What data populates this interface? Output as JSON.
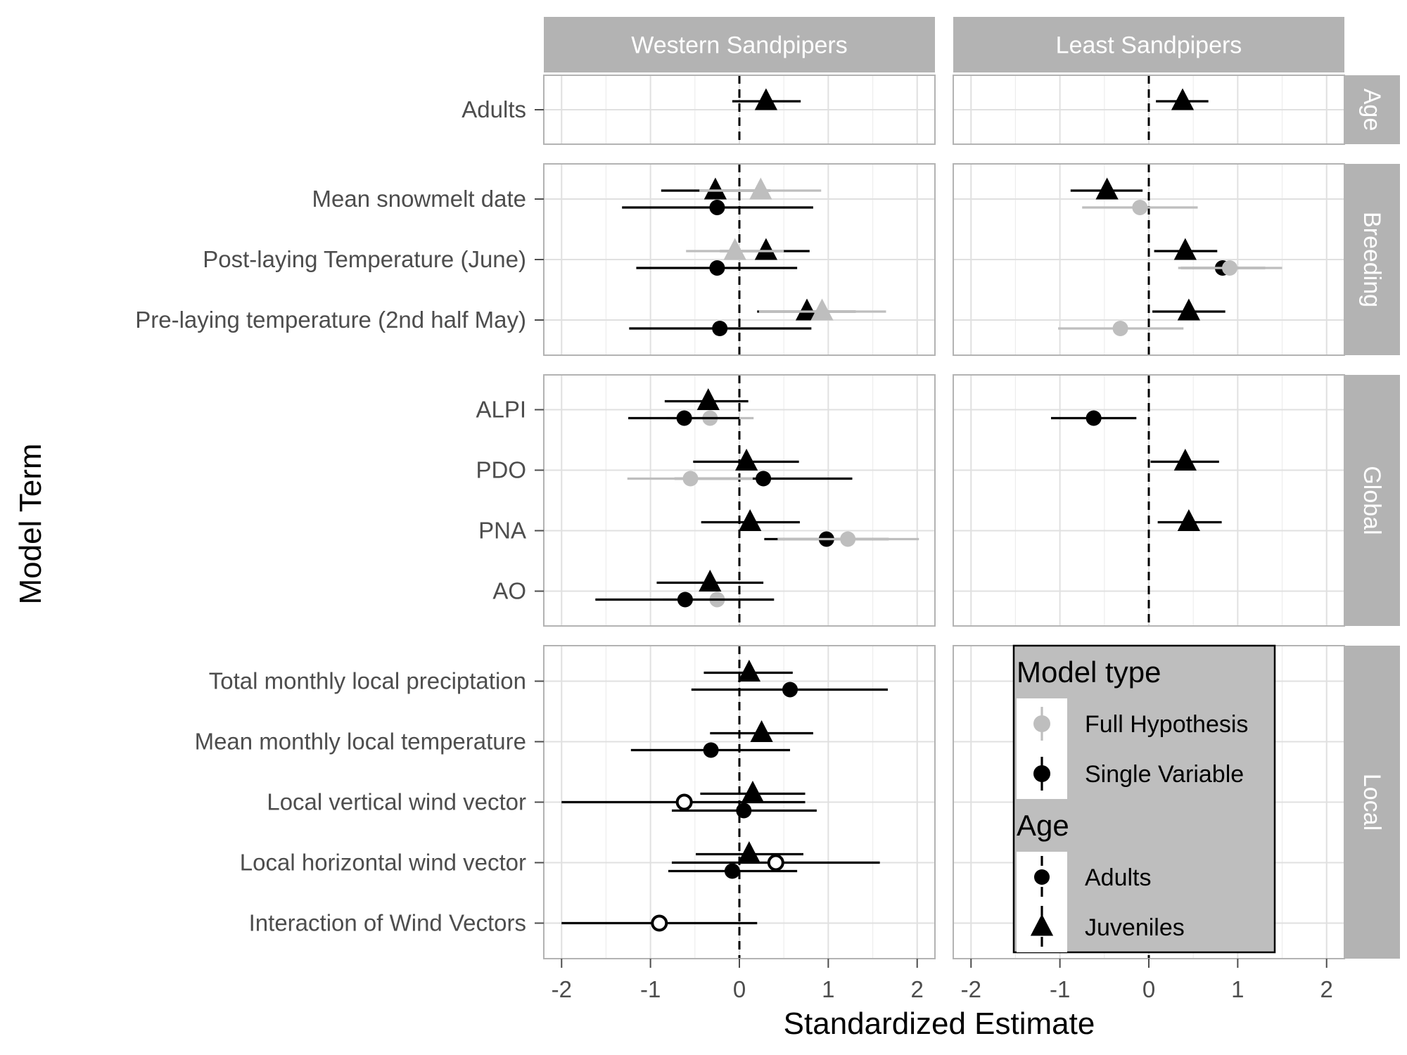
{
  "chart_data": {
    "type": "forest",
    "xlabel": "Standardized Estimate",
    "ylabel": "Model Term",
    "xlim": [
      -2.2,
      2.2
    ],
    "x_ticks": [
      -2,
      -1,
      0,
      1,
      2
    ],
    "x_tick_labels": [
      "-2",
      "-1",
      "0",
      "1",
      "2"
    ],
    "reference_line": 0,
    "grid": true,
    "columns": [
      "Western Sandpipers",
      "Least Sandpipers"
    ],
    "rows": [
      {
        "name": "Age",
        "terms": [
          "Adults"
        ]
      },
      {
        "name": "Breeding",
        "terms": [
          "Mean snowmelt date",
          "Post-laying Temperature (June)",
          "Pre-laying temperature (2nd half May)"
        ]
      },
      {
        "name": "Global",
        "terms": [
          "ALPI",
          "PDO",
          "PNA",
          "AO"
        ]
      },
      {
        "name": "Local",
        "terms": [
          "Total monthly local preciptation",
          "Mean monthly local temperature",
          "Local vertical wind vector",
          "Local horizontal wind vector",
          "Interaction of Wind Vectors"
        ]
      }
    ],
    "legend": {
      "position": "inside-bottom-right",
      "model_type_title": "Model type",
      "model_types": [
        {
          "label": "Full Hypothesis",
          "color": "#bebebe"
        },
        {
          "label": "Single Variable",
          "color": "#000000"
        }
      ],
      "age_title": "Age",
      "ages": [
        {
          "label": "Adults",
          "shape": "circle"
        },
        {
          "label": "Juveniles",
          "shape": "triangle"
        }
      ]
    },
    "colors": {
      "full": "#bebebe",
      "single": "#000000",
      "strip": "#b3b3b3",
      "grid": "#e0e0e0",
      "legend_bg": "#bebebe"
    },
    "points": [
      {
        "species": "Western Sandpipers",
        "term": "Adults",
        "model": "single",
        "age": "juvenile",
        "est": 0.3,
        "lo": -0.08,
        "hi": 0.69
      },
      {
        "species": "Least Sandpipers",
        "term": "Adults",
        "model": "single",
        "age": "juvenile",
        "est": 0.38,
        "lo": 0.08,
        "hi": 0.67
      },
      {
        "species": "Western Sandpipers",
        "term": "Mean snowmelt date",
        "model": "single",
        "age": "juvenile",
        "est": -0.27,
        "lo": -0.88,
        "hi": 0.35
      },
      {
        "species": "Western Sandpipers",
        "term": "Mean snowmelt date",
        "model": "full",
        "age": "juvenile",
        "est": 0.24,
        "lo": -0.45,
        "hi": 0.92
      },
      {
        "species": "Western Sandpipers",
        "term": "Mean snowmelt date",
        "model": "single",
        "age": "adult",
        "est": -0.25,
        "lo": -1.32,
        "hi": 0.83
      },
      {
        "species": "Least Sandpipers",
        "term": "Mean snowmelt date",
        "model": "single",
        "age": "juvenile",
        "est": -0.47,
        "lo": -0.88,
        "hi": -0.07
      },
      {
        "species": "Least Sandpipers",
        "term": "Mean snowmelt date",
        "model": "full",
        "age": "adult",
        "est": -0.1,
        "lo": -0.75,
        "hi": 0.55
      },
      {
        "species": "Western Sandpipers",
        "term": "Post-laying Temperature (June)",
        "model": "single",
        "age": "juvenile",
        "est": 0.3,
        "lo": -0.22,
        "hi": 0.79
      },
      {
        "species": "Western Sandpipers",
        "term": "Post-laying Temperature (June)",
        "model": "full",
        "age": "juvenile",
        "est": -0.05,
        "lo": -0.6,
        "hi": 0.5
      },
      {
        "species": "Western Sandpipers",
        "term": "Post-laying Temperature (June)",
        "model": "single",
        "age": "adult",
        "est": -0.25,
        "lo": -1.16,
        "hi": 0.65
      },
      {
        "species": "Least Sandpipers",
        "term": "Post-laying Temperature (June)",
        "model": "single",
        "age": "juvenile",
        "est": 0.41,
        "lo": 0.06,
        "hi": 0.77
      },
      {
        "species": "Least Sandpipers",
        "term": "Post-laying Temperature (June)",
        "model": "single",
        "age": "adult",
        "est": 0.83,
        "lo": 0.36,
        "hi": 1.31
      },
      {
        "species": "Least Sandpipers",
        "term": "Post-laying Temperature (June)",
        "model": "full",
        "age": "adult",
        "est": 0.91,
        "lo": 0.33,
        "hi": 1.5
      },
      {
        "species": "Western Sandpipers",
        "term": "Pre-laying temperature (2nd half May)",
        "model": "single",
        "age": "juvenile",
        "est": 0.76,
        "lo": 0.2,
        "hi": 1.31
      },
      {
        "species": "Western Sandpipers",
        "term": "Pre-laying temperature (2nd half May)",
        "model": "full",
        "age": "juvenile",
        "est": 0.93,
        "lo": 0.22,
        "hi": 1.65
      },
      {
        "species": "Western Sandpipers",
        "term": "Pre-laying temperature (2nd half May)",
        "model": "single",
        "age": "adult",
        "est": -0.22,
        "lo": -1.24,
        "hi": 0.81
      },
      {
        "species": "Least Sandpipers",
        "term": "Pre-laying temperature (2nd half May)",
        "model": "single",
        "age": "juvenile",
        "est": 0.45,
        "lo": 0.04,
        "hi": 0.86
      },
      {
        "species": "Least Sandpipers",
        "term": "Pre-laying temperature (2nd half May)",
        "model": "full",
        "age": "adult",
        "est": -0.32,
        "lo": -1.02,
        "hi": 0.39
      },
      {
        "species": "Western Sandpipers",
        "term": "ALPI",
        "model": "single",
        "age": "juvenile",
        "est": -0.35,
        "lo": -0.84,
        "hi": 0.1
      },
      {
        "species": "Western Sandpipers",
        "term": "ALPI",
        "model": "full",
        "age": "adult",
        "est": -0.33,
        "lo": -0.82,
        "hi": 0.16
      },
      {
        "species": "Western Sandpipers",
        "term": "ALPI",
        "model": "single",
        "age": "adult",
        "est": -0.62,
        "lo": -1.25,
        "hi": 0.0
      },
      {
        "species": "Least Sandpipers",
        "term": "ALPI",
        "model": "single",
        "age": "adult",
        "est": -0.62,
        "lo": -1.1,
        "hi": -0.14
      },
      {
        "species": "Western Sandpipers",
        "term": "PDO",
        "model": "single",
        "age": "juvenile",
        "est": 0.08,
        "lo": -0.52,
        "hi": 0.67
      },
      {
        "species": "Western Sandpipers",
        "term": "PDO",
        "model": "single",
        "age": "adult",
        "est": 0.27,
        "lo": -0.73,
        "hi": 1.27
      },
      {
        "species": "Western Sandpipers",
        "term": "PDO",
        "model": "full",
        "age": "adult",
        "est": -0.55,
        "lo": -1.26,
        "hi": 0.15
      },
      {
        "species": "Least Sandpipers",
        "term": "PDO",
        "model": "single",
        "age": "juvenile",
        "est": 0.41,
        "lo": 0.02,
        "hi": 0.79
      },
      {
        "species": "Western Sandpipers",
        "term": "PNA",
        "model": "single",
        "age": "juvenile",
        "est": 0.12,
        "lo": -0.43,
        "hi": 0.68
      },
      {
        "species": "Western Sandpipers",
        "term": "PNA",
        "model": "single",
        "age": "adult",
        "est": 0.98,
        "lo": 0.28,
        "hi": 1.68
      },
      {
        "species": "Western Sandpipers",
        "term": "PNA",
        "model": "full",
        "age": "adult",
        "est": 1.22,
        "lo": 0.43,
        "hi": 2.02
      },
      {
        "species": "Least Sandpipers",
        "term": "PNA",
        "model": "single",
        "age": "juvenile",
        "est": 0.45,
        "lo": 0.1,
        "hi": 0.82
      },
      {
        "species": "Western Sandpipers",
        "term": "AO",
        "model": "single",
        "age": "juvenile",
        "est": -0.33,
        "lo": -0.93,
        "hi": 0.27
      },
      {
        "species": "Western Sandpipers",
        "term": "AO",
        "model": "full",
        "age": "adult",
        "est": -0.25,
        "lo": -0.86,
        "hi": 0.36
      },
      {
        "species": "Western Sandpipers",
        "term": "AO",
        "model": "single",
        "age": "adult",
        "est": -0.61,
        "lo": -1.62,
        "hi": 0.39
      },
      {
        "species": "Western Sandpipers",
        "term": "Total monthly local preciptation",
        "model": "single",
        "age": "juvenile",
        "est": 0.11,
        "lo": -0.4,
        "hi": 0.6
      },
      {
        "species": "Western Sandpipers",
        "term": "Total monthly local preciptation",
        "model": "single",
        "age": "adult",
        "est": 0.57,
        "lo": -0.54,
        "hi": 1.67
      },
      {
        "species": "Western Sandpipers",
        "term": "Mean monthly local temperature",
        "model": "single",
        "age": "juvenile",
        "est": 0.25,
        "lo": -0.33,
        "hi": 0.83
      },
      {
        "species": "Western Sandpipers",
        "term": "Mean monthly local temperature",
        "model": "single",
        "age": "adult",
        "est": -0.32,
        "lo": -1.22,
        "hi": 0.57
      },
      {
        "species": "Western Sandpipers",
        "term": "Local vertical wind vector",
        "model": "single",
        "age": "juvenile",
        "est": 0.15,
        "lo": -0.44,
        "hi": 0.74
      },
      {
        "species": "Western Sandpipers",
        "term": "Local vertical wind vector",
        "model": "single",
        "age": "adult-open",
        "est": -0.62,
        "lo": -2.0,
        "hi": 0.74
      },
      {
        "species": "Western Sandpipers",
        "term": "Local vertical wind vector",
        "model": "single",
        "age": "adult",
        "est": 0.05,
        "lo": -0.76,
        "hi": 0.87
      },
      {
        "species": "Western Sandpipers",
        "term": "Local horizontal wind vector",
        "model": "single",
        "age": "juvenile",
        "est": 0.11,
        "lo": -0.49,
        "hi": 0.72
      },
      {
        "species": "Western Sandpipers",
        "term": "Local horizontal wind vector",
        "model": "single",
        "age": "adult-open",
        "est": 0.41,
        "lo": -0.76,
        "hi": 1.58
      },
      {
        "species": "Western Sandpipers",
        "term": "Local horizontal wind vector",
        "model": "single",
        "age": "adult",
        "est": -0.08,
        "lo": -0.8,
        "hi": 0.65
      },
      {
        "species": "Western Sandpipers",
        "term": "Interaction of Wind Vectors",
        "model": "single",
        "age": "adult-open",
        "est": -0.9,
        "lo": -2.0,
        "hi": 0.2
      }
    ]
  }
}
